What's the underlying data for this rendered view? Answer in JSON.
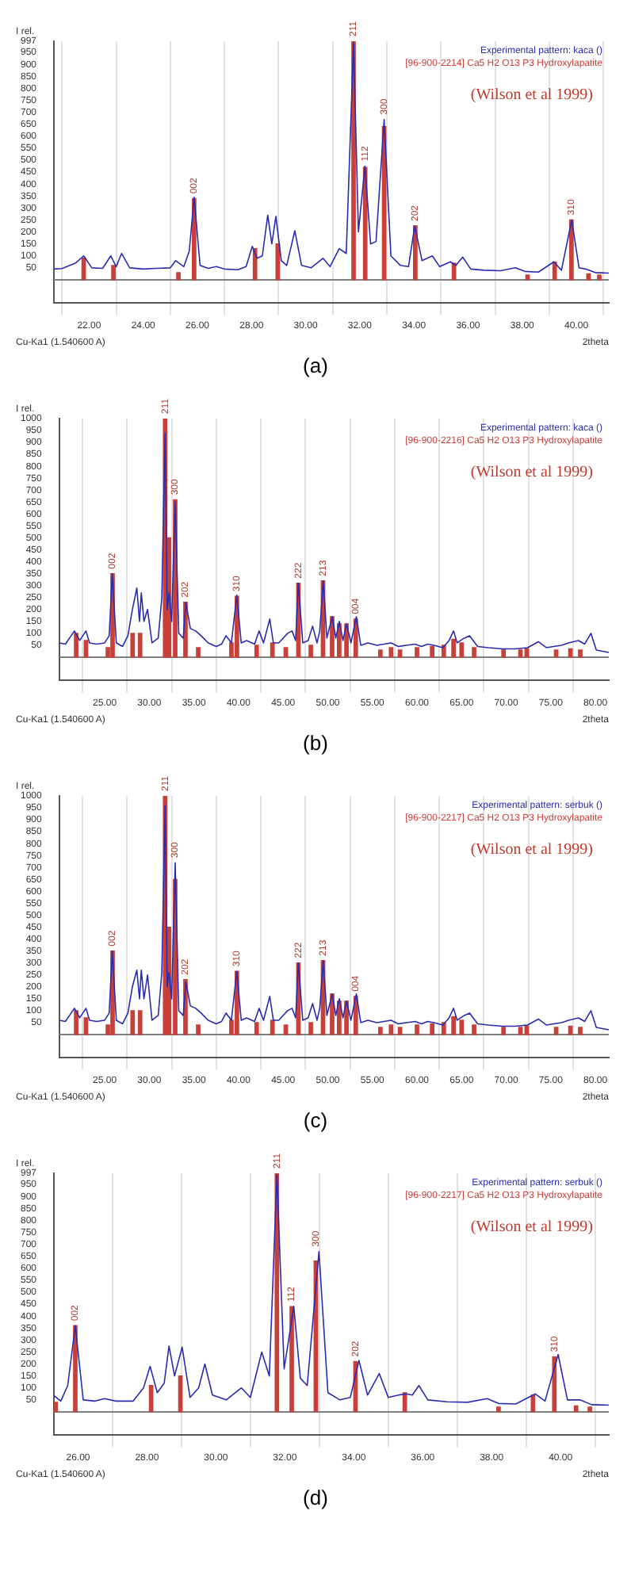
{
  "chart_data": [
    {
      "type": "line",
      "xlabel": "2theta",
      "ylabel": "I rel.",
      "xlim": [
        20.7,
        41.2
      ],
      "ylim": [
        -95,
        997
      ],
      "xticks": [
        {
          "value": 22,
          "label": "22.00"
        },
        {
          "value": 24,
          "label": "24.00"
        },
        {
          "value": 26,
          "label": "26.00"
        },
        {
          "value": 28,
          "label": "28.00"
        },
        {
          "value": 30,
          "label": "30.00"
        },
        {
          "value": 32,
          "label": "32.00"
        },
        {
          "value": 34,
          "label": "34.00"
        },
        {
          "value": 36,
          "label": "36.00"
        },
        {
          "value": 38,
          "label": "38.00"
        },
        {
          "value": 40,
          "label": "40.00"
        }
      ],
      "yticks": [
        50,
        100,
        150,
        200,
        250,
        300,
        350,
        400,
        450,
        500,
        550,
        600,
        650,
        700,
        750,
        800,
        850,
        900,
        950,
        997
      ],
      "grid": "x",
      "legend": "top right",
      "ref_lines": [
        {
          "axis": "y",
          "value": 0,
          "color": "#808080"
        }
      ],
      "series": [
        {
          "name": "Experimental pattern: kaca ()",
          "color": "#2b2bb0",
          "x": [
            20.7,
            21.0,
            21.5,
            21.8,
            22.1,
            22.5,
            22.8,
            23.0,
            23.2,
            23.5,
            24.0,
            24.5,
            25.0,
            25.2,
            25.5,
            25.7,
            25.88,
            26.1,
            26.4,
            26.7,
            27.0,
            27.5,
            27.8,
            28.03,
            28.2,
            28.4,
            28.6,
            28.75,
            28.9,
            29.1,
            29.3,
            29.6,
            29.85,
            30.2,
            30.64,
            30.9,
            31.24,
            31.5,
            31.77,
            31.95,
            32.19,
            32.4,
            32.6,
            32.9,
            33.15,
            33.5,
            33.8,
            34.03,
            34.3,
            34.68,
            34.95,
            35.35,
            35.55,
            35.8,
            36.1,
            36.6,
            37.2,
            37.75,
            38.1,
            38.6,
            39.17,
            39.45,
            39.83,
            40.1,
            40.34,
            40.7,
            41.2
          ],
          "values": [
            45,
            47,
            70,
            100,
            50,
            48,
            100,
            55,
            110,
            50,
            45,
            48,
            50,
            80,
            55,
            120,
            345,
            60,
            48,
            55,
            45,
            42,
            55,
            140,
            90,
            100,
            270,
            150,
            265,
            80,
            60,
            205,
            60,
            50,
            90,
            55,
            130,
            110,
            990,
            200,
            475,
            150,
            160,
            670,
            100,
            60,
            55,
            225,
            80,
            100,
            55,
            75,
            60,
            95,
            45,
            40,
            38,
            50,
            35,
            32,
            75,
            40,
            250,
            50,
            45,
            30,
            28
          ]
        },
        {
          "name": "[96-900-2214] Ca5 H2 O13 P3 Hydroxylapatite",
          "color": "#c8403a",
          "type": "bar",
          "x": [
            21.8,
            22.9,
            25.3,
            25.88,
            28.13,
            28.97,
            31.77,
            32.2,
            32.9,
            34.05,
            35.48,
            38.2,
            39.2,
            39.82,
            40.45,
            40.85
          ],
          "values": [
            90,
            60,
            30,
            340,
            130,
            150,
            997,
            470,
            640,
            225,
            70,
            20,
            75,
            250,
            25,
            20
          ]
        }
      ],
      "annotations": [
        "(Wilson et al 1999)",
        "Cu-Ka1 (1.540600 A)",
        {
          "text": "002",
          "x": 25.88,
          "y": 340
        },
        {
          "text": "211",
          "x": 31.77,
          "y": 997
        },
        {
          "text": "112",
          "x": 32.2,
          "y": 475
        },
        {
          "text": "300",
          "x": 32.9,
          "y": 670
        },
        {
          "text": "202",
          "x": 34.05,
          "y": 225
        },
        {
          "text": "310",
          "x": 39.82,
          "y": 250
        },
        "(a)"
      ]
    },
    {
      "type": "line",
      "xlabel": "2theta",
      "ylabel": "I rel.",
      "xlim": [
        19.9,
        81.5
      ],
      "ylim": [
        -95,
        1000
      ],
      "xticks": [
        {
          "value": 25,
          "label": "25.00"
        },
        {
          "value": 30,
          "label": "30.00"
        },
        {
          "value": 35,
          "label": "35.00"
        },
        {
          "value": 40,
          "label": "40.00"
        },
        {
          "value": 45,
          "label": "45.00"
        },
        {
          "value": 50,
          "label": "50.00"
        },
        {
          "value": 55,
          "label": "55.00"
        },
        {
          "value": 60,
          "label": "60.00"
        },
        {
          "value": 65,
          "label": "65.00"
        },
        {
          "value": 70,
          "label": "70.00"
        },
        {
          "value": 75,
          "label": "75.00"
        },
        {
          "value": 80,
          "label": "80.00"
        }
      ],
      "yticks": [
        50,
        100,
        150,
        200,
        250,
        300,
        350,
        400,
        450,
        500,
        550,
        600,
        650,
        700,
        750,
        800,
        850,
        900,
        950,
        1000
      ],
      "grid": "x",
      "legend": "top right",
      "ref_lines": [
        {
          "axis": "y",
          "value": 0,
          "color": "#808080"
        }
      ],
      "series": [
        {
          "name": "Experimental pattern: kaca ()",
          "color": "#2b2bb0",
          "x": [
            19.9,
            20.6,
            21.6,
            22.2,
            22.9,
            23.3,
            24.1,
            25.0,
            25.5,
            25.85,
            26.3,
            27.0,
            27.6,
            28.1,
            28.6,
            28.9,
            29.1,
            29.4,
            29.8,
            30.3,
            31.0,
            31.4,
            31.77,
            32.0,
            32.2,
            32.5,
            32.9,
            33.3,
            33.8,
            34.1,
            34.6,
            35.2,
            35.8,
            36.6,
            37.5,
            38.1,
            38.6,
            39.2,
            39.8,
            40.3,
            40.9,
            41.8,
            42.3,
            42.8,
            43.5,
            43.9,
            44.5,
            45.5,
            46.0,
            46.4,
            46.7,
            47.2,
            47.8,
            48.3,
            48.8,
            49.1,
            49.5,
            49.9,
            50.5,
            50.9,
            51.3,
            51.7,
            52.1,
            52.6,
            53.2,
            53.7,
            54.5,
            55.5,
            56.3,
            57.1,
            57.9,
            58.8,
            59.8,
            60.5,
            61.2,
            61.9,
            62.9,
            63.6,
            64.1,
            64.5,
            65.3,
            65.9,
            66.8,
            68.0,
            69.6,
            71.0,
            72.4,
            73.6,
            74.5,
            75.3,
            76.2,
            77.0,
            78.1,
            78.8,
            79.5,
            80.1,
            81.5
          ],
          "values": [
            60,
            55,
            110,
            70,
            110,
            60,
            55,
            60,
            90,
            350,
            60,
            45,
            90,
            200,
            290,
            150,
            270,
            150,
            200,
            60,
            80,
            250,
            940,
            200,
            270,
            150,
            650,
            100,
            80,
            230,
            120,
            110,
            90,
            60,
            45,
            55,
            90,
            60,
            260,
            60,
            70,
            55,
            110,
            60,
            160,
            60,
            60,
            100,
            110,
            70,
            310,
            60,
            70,
            130,
            60,
            110,
            320,
            80,
            170,
            80,
            150,
            70,
            140,
            60,
            170,
            50,
            60,
            50,
            55,
            60,
            45,
            50,
            55,
            45,
            55,
            50,
            40,
            70,
            110,
            60,
            80,
            90,
            45,
            40,
            35,
            35,
            40,
            65,
            40,
            45,
            50,
            60,
            70,
            55,
            100,
            30,
            20
          ]
        },
        {
          "name": "[96-900-2216] Ca5 H2 O13 P3 Hydroxylapatite",
          "color": "#c8403a",
          "type": "bar",
          "x": [
            21.8,
            22.9,
            25.35,
            25.88,
            28.13,
            28.97,
            31.77,
            32.2,
            32.9,
            34.05,
            35.48,
            39.2,
            39.82,
            42.03,
            43.8,
            45.3,
            46.71,
            48.1,
            49.47,
            50.49,
            51.28,
            52.1,
            53.14,
            55.9,
            57.1,
            58.1,
            60.0,
            61.7,
            63.0,
            64.1,
            65.0,
            66.4,
            69.7,
            71.6,
            72.3,
            75.6,
            77.2,
            78.3
          ],
          "values": [
            100,
            70,
            40,
            350,
            100,
            100,
            1000,
            500,
            660,
            230,
            40,
            60,
            255,
            50,
            60,
            40,
            310,
            50,
            320,
            170,
            140,
            140,
            160,
            30,
            40,
            30,
            40,
            45,
            50,
            75,
            60,
            40,
            30,
            30,
            35,
            30,
            35,
            30
          ]
        }
      ],
      "annotations": [
        "(Wilson et al 1999)",
        "Cu-Ka1 (1.540600 A)",
        {
          "text": "002",
          "x": 25.88,
          "y": 350
        },
        {
          "text": "211",
          "x": 31.77,
          "y": 1000
        },
        {
          "text": "300",
          "x": 32.9,
          "y": 660
        },
        {
          "text": "202",
          "x": 34.05,
          "y": 230
        },
        {
          "text": "310",
          "x": 39.82,
          "y": 255
        },
        {
          "text": "222",
          "x": 46.71,
          "y": 310
        },
        {
          "text": "213",
          "x": 49.47,
          "y": 320
        },
        {
          "text": "004",
          "x": 53.14,
          "y": 160
        },
        "(b)"
      ]
    },
    {
      "type": "line",
      "xlabel": "2theta",
      "ylabel": "I rel.",
      "xlim": [
        19.9,
        81.5
      ],
      "ylim": [
        -95,
        1000
      ],
      "xticks": [
        {
          "value": 25,
          "label": "25.00"
        },
        {
          "value": 30,
          "label": "30.00"
        },
        {
          "value": 35,
          "label": "35.00"
        },
        {
          "value": 40,
          "label": "40.00"
        },
        {
          "value": 45,
          "label": "45.00"
        },
        {
          "value": 50,
          "label": "50.00"
        },
        {
          "value": 55,
          "label": "55.00"
        },
        {
          "value": 60,
          "label": "60.00"
        },
        {
          "value": 65,
          "label": "65.00"
        },
        {
          "value": 70,
          "label": "70.00"
        },
        {
          "value": 75,
          "label": "75.00"
        },
        {
          "value": 80,
          "label": "80.00"
        }
      ],
      "yticks": [
        50,
        100,
        150,
        200,
        250,
        300,
        350,
        400,
        450,
        500,
        550,
        600,
        650,
        700,
        750,
        800,
        850,
        900,
        950,
        1000
      ],
      "grid": "x",
      "legend": "top right",
      "ref_lines": [
        {
          "axis": "y",
          "value": 0,
          "color": "#808080"
        }
      ],
      "series": [
        {
          "name": "Experimental pattern: serbuk ()",
          "color": "#2b2bb0",
          "x": [
            19.9,
            20.6,
            21.6,
            22.2,
            22.9,
            23.3,
            24.1,
            25.0,
            25.5,
            25.85,
            26.3,
            27.0,
            27.6,
            28.1,
            28.6,
            28.9,
            29.1,
            29.4,
            29.8,
            30.3,
            31.0,
            31.4,
            31.77,
            32.0,
            32.2,
            32.5,
            32.9,
            33.3,
            33.8,
            34.1,
            34.6,
            35.2,
            35.8,
            36.6,
            37.5,
            38.1,
            38.6,
            39.2,
            39.8,
            40.3,
            40.9,
            41.8,
            42.3,
            42.8,
            43.5,
            43.9,
            44.5,
            45.5,
            46.0,
            46.4,
            46.7,
            47.2,
            47.8,
            48.3,
            48.8,
            49.1,
            49.5,
            49.9,
            50.5,
            50.9,
            51.3,
            51.7,
            52.1,
            52.6,
            53.2,
            53.7,
            54.5,
            55.5,
            56.3,
            57.1,
            57.9,
            58.8,
            59.8,
            60.5,
            61.2,
            61.9,
            62.9,
            63.6,
            64.1,
            64.5,
            65.3,
            65.9,
            66.8,
            68.0,
            69.6,
            71.0,
            72.4,
            73.6,
            74.5,
            75.3,
            76.2,
            77.0,
            78.1,
            78.8,
            79.5,
            80.1,
            81.5
          ],
          "values": [
            60,
            55,
            110,
            70,
            110,
            60,
            55,
            60,
            90,
            350,
            60,
            45,
            90,
            200,
            270,
            150,
            270,
            150,
            250,
            60,
            80,
            260,
            960,
            200,
            260,
            150,
            720,
            100,
            80,
            220,
            120,
            110,
            90,
            60,
            45,
            55,
            90,
            60,
            265,
            60,
            70,
            55,
            110,
            60,
            160,
            60,
            60,
            100,
            110,
            70,
            300,
            60,
            70,
            130,
            60,
            110,
            310,
            80,
            170,
            80,
            150,
            70,
            140,
            60,
            170,
            50,
            60,
            50,
            55,
            60,
            45,
            50,
            55,
            45,
            55,
            50,
            40,
            70,
            110,
            60,
            80,
            90,
            45,
            40,
            35,
            35,
            40,
            65,
            40,
            45,
            50,
            60,
            70,
            55,
            100,
            30,
            20
          ]
        },
        {
          "name": "[96-900-2217] Ca5 H2 O13 P3 Hydroxylapatite",
          "color": "#c8403a",
          "type": "bar",
          "x": [
            21.8,
            22.9,
            25.35,
            25.88,
            28.13,
            28.97,
            31.77,
            32.2,
            32.9,
            34.05,
            35.48,
            39.2,
            39.82,
            42.03,
            43.8,
            45.3,
            46.71,
            48.1,
            49.47,
            50.49,
            51.28,
            52.1,
            53.14,
            55.9,
            57.1,
            58.1,
            60.0,
            61.7,
            63.0,
            64.1,
            65.0,
            66.4,
            69.7,
            71.6,
            72.3,
            75.6,
            77.2,
            78.3
          ],
          "values": [
            100,
            70,
            40,
            350,
            100,
            100,
            1000,
            450,
            650,
            230,
            40,
            60,
            265,
            50,
            60,
            40,
            300,
            50,
            310,
            170,
            140,
            140,
            160,
            30,
            40,
            30,
            40,
            45,
            50,
            75,
            60,
            40,
            30,
            30,
            35,
            30,
            35,
            30
          ]
        }
      ],
      "annotations": [
        "(Wilson et al 1999)",
        "Cu-Ka1 (1.540600 A)",
        {
          "text": "002",
          "x": 25.88,
          "y": 350
        },
        {
          "text": "211",
          "x": 31.77,
          "y": 1000
        },
        {
          "text": "300",
          "x": 32.9,
          "y": 720
        },
        {
          "text": "202",
          "x": 34.05,
          "y": 230
        },
        {
          "text": "310",
          "x": 39.82,
          "y": 265
        },
        {
          "text": "222",
          "x": 46.71,
          "y": 300
        },
        {
          "text": "213",
          "x": 49.47,
          "y": 310
        },
        {
          "text": "004",
          "x": 53.14,
          "y": 160
        },
        "(c)"
      ]
    },
    {
      "type": "line",
      "xlabel": "2theta",
      "ylabel": "I rel.",
      "xlim": [
        25.3,
        41.4
      ],
      "ylim": [
        -95,
        997
      ],
      "xticks": [
        {
          "value": 26,
          "label": "26.00"
        },
        {
          "value": 28,
          "label": "28.00"
        },
        {
          "value": 30,
          "label": "30.00"
        },
        {
          "value": 32,
          "label": "32.00"
        },
        {
          "value": 34,
          "label": "34.00"
        },
        {
          "value": 36,
          "label": "36.00"
        },
        {
          "value": 38,
          "label": "38.00"
        },
        {
          "value": 40,
          "label": "40.00"
        }
      ],
      "yticks": [
        50,
        100,
        150,
        200,
        250,
        300,
        350,
        400,
        450,
        500,
        550,
        600,
        650,
        700,
        750,
        800,
        850,
        900,
        950,
        997
      ],
      "grid": "x",
      "legend": "top right",
      "ref_lines": [
        {
          "axis": "y",
          "value": 0,
          "color": "#808080"
        }
      ],
      "series": [
        {
          "name": "Experimental pattern: serbuk ()",
          "color": "#2b2bb0",
          "x": [
            25.3,
            25.5,
            25.7,
            25.92,
            26.15,
            26.5,
            26.77,
            27.1,
            27.6,
            27.9,
            28.09,
            28.3,
            28.5,
            28.64,
            28.8,
            29.02,
            29.25,
            29.5,
            29.68,
            29.9,
            30.3,
            30.74,
            31.0,
            31.33,
            31.55,
            31.77,
            31.98,
            32.26,
            32.45,
            32.65,
            32.99,
            33.25,
            33.6,
            33.9,
            34.15,
            34.4,
            34.74,
            35.0,
            35.3,
            35.52,
            35.7,
            35.89,
            36.15,
            36.7,
            37.3,
            37.87,
            38.2,
            38.7,
            39.27,
            39.55,
            39.93,
            40.2,
            40.56,
            40.9,
            41.4
          ],
          "values": [
            68,
            45,
            110,
            360,
            50,
            45,
            55,
            45,
            45,
            100,
            190,
            80,
            120,
            275,
            150,
            270,
            60,
            100,
            200,
            70,
            50,
            100,
            60,
            250,
            150,
            990,
            180,
            440,
            140,
            110,
            670,
            80,
            50,
            60,
            215,
            70,
            160,
            60,
            70,
            75,
            70,
            110,
            50,
            42,
            40,
            55,
            35,
            33,
            75,
            45,
            240,
            50,
            50,
            30,
            28
          ]
        },
        {
          "name": "[96-900-2217] Ca5 H2 O13 P3 Hydroxylapatite",
          "color": "#c8403a",
          "type": "bar",
          "x": [
            25.35,
            25.92,
            28.12,
            28.97,
            31.77,
            32.2,
            32.9,
            34.05,
            35.48,
            38.2,
            39.2,
            39.82,
            40.45,
            40.85
          ],
          "values": [
            40,
            360,
            110,
            150,
            997,
            440,
            630,
            210,
            80,
            20,
            70,
            230,
            25,
            20
          ]
        }
      ],
      "annotations": [
        "(Wilson et al 1999)",
        "Cu-Ka1 (1.540600 A)",
        {
          "text": "002",
          "x": 25.92,
          "y": 360
        },
        {
          "text": "211",
          "x": 31.77,
          "y": 997
        },
        {
          "text": "112",
          "x": 32.2,
          "y": 440
        },
        {
          "text": "300",
          "x": 32.9,
          "y": 670
        },
        {
          "text": "202",
          "x": 34.05,
          "y": 210
        },
        {
          "text": "310",
          "x": 39.82,
          "y": 230
        },
        "(d)"
      ]
    }
  ]
}
